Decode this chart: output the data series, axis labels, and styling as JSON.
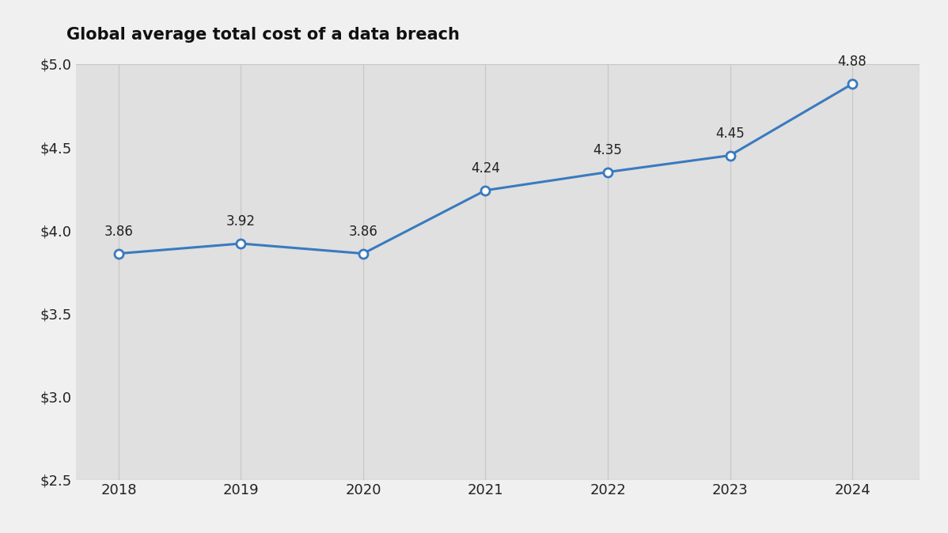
{
  "title": "Global average total cost of a data breach",
  "years": [
    2018,
    2019,
    2020,
    2021,
    2022,
    2023,
    2024
  ],
  "values": [
    3.86,
    3.92,
    3.86,
    4.24,
    4.35,
    4.45,
    4.88
  ],
  "ylim": [
    2.5,
    5.0
  ],
  "yticks": [
    2.5,
    3.0,
    3.5,
    4.0,
    4.5,
    5.0
  ],
  "line_color": "#3a7abf",
  "marker_face": "#ffffff",
  "background_color": "#f0f0f0",
  "plot_bg_color": "#e0e0e0",
  "title_fontsize": 15,
  "tick_fontsize": 13,
  "annotation_fontsize": 12,
  "grid_color": "#c8c8c8",
  "text_color": "#222222",
  "xlim_left": 2017.65,
  "xlim_right": 2024.55
}
